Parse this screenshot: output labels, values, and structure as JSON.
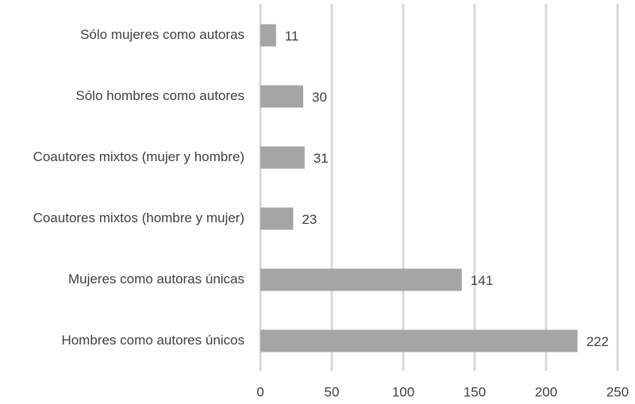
{
  "chart_data": {
    "type": "bar",
    "orientation": "horizontal",
    "categories": [
      "Sólo mujeres como autoras",
      "Sólo hombres como autores",
      "Coautores mixtos (mujer y hombre)",
      "Coautores mixtos (hombre y mujer)",
      "Mujeres como autoras únicas",
      "Hombres como autores únicos"
    ],
    "values": [
      11,
      30,
      31,
      23,
      141,
      222
    ],
    "color": "#a5a5a5",
    "xlim": [
      0,
      250
    ],
    "xticks": [
      0,
      50,
      100,
      150,
      200,
      250
    ],
    "grid": true
  }
}
